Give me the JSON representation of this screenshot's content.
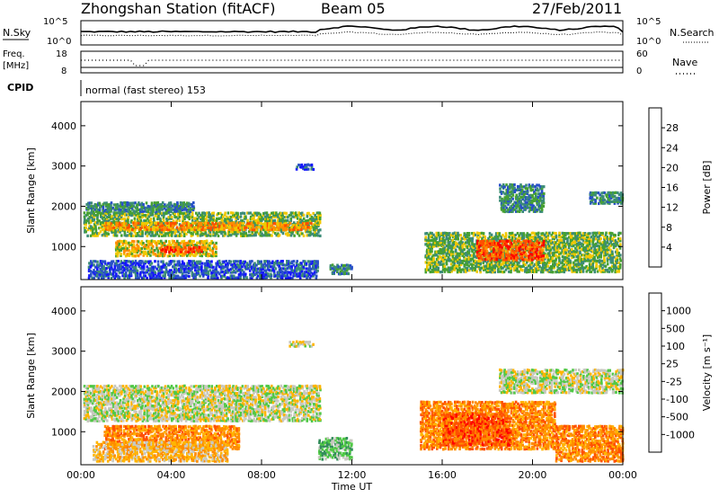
{
  "header": {
    "station": "Zhongshan Station (fitACF)",
    "beam": "Beam 05",
    "date": "27/Feb/2011"
  },
  "strip_panels": {
    "nsky_label": "N.Sky",
    "nsearch_label": "N.Search",
    "freq_label_1": "Freq.",
    "freq_label_2": "[MHz]",
    "nave_label": "Nave",
    "cpid_label": "CPID",
    "cpid_text": "normal (fast stereo) 153",
    "noise_ticks_left": [
      "10^5",
      "10^0"
    ],
    "noise_ticks_right": [
      "10^5",
      "10^0"
    ],
    "freq_ticks": [
      "18",
      "8"
    ],
    "nave_ticks": [
      "60",
      "0"
    ]
  },
  "chart_data": [
    {
      "type": "heatmap",
      "name": "power",
      "ylabel": "Slant Range [km]",
      "xlabel": "",
      "xlim": [
        0,
        24
      ],
      "ylim": [
        180,
        4600
      ],
      "yticks": [
        "1000",
        "2000",
        "3000",
        "4000"
      ],
      "xticks": [
        "00:00",
        "04:00",
        "08:00",
        "12:00",
        "16:00",
        "20:00",
        "00:00"
      ],
      "colorbar": {
        "label": "Power [dB]",
        "ticks": [
          "4",
          "8",
          "12",
          "16",
          "20",
          "24",
          "28"
        ],
        "colors": [
          "#1414ff",
          "#2850c8",
          "#3c8c78",
          "#46a032",
          "#f0c800",
          "#ff8c00",
          "#ff5000",
          "#ff0000"
        ]
      },
      "echo_regions": [
        {
          "t0": 0.1,
          "t1": 10.6,
          "r0": 1300,
          "r1": 1900,
          "level": 3
        },
        {
          "t0": 1.0,
          "t1": 10.2,
          "r0": 1450,
          "r1": 1650,
          "level": 5
        },
        {
          "t0": 1.5,
          "t1": 6.0,
          "r0": 800,
          "r1": 1200,
          "level": 4
        },
        {
          "t0": 3.5,
          "t1": 5.5,
          "r0": 900,
          "r1": 1050,
          "level": 6
        },
        {
          "t0": 0.2,
          "t1": 5.0,
          "r0": 1900,
          "r1": 2150,
          "level": 2
        },
        {
          "t0": 0.3,
          "t1": 10.5,
          "r0": 250,
          "r1": 700,
          "level": 1
        },
        {
          "t0": 9.5,
          "t1": 10.3,
          "r0": 2950,
          "r1": 3100,
          "level": 1
        },
        {
          "t0": 15.2,
          "t1": 23.9,
          "r0": 400,
          "r1": 1400,
          "level": 3
        },
        {
          "t0": 17.5,
          "t1": 20.5,
          "r0": 700,
          "r1": 1200,
          "level": 6
        },
        {
          "t0": 18.5,
          "t1": 20.5,
          "r0": 1900,
          "r1": 2600,
          "level": 2
        },
        {
          "t0": 22.5,
          "t1": 24.0,
          "r0": 2100,
          "r1": 2400,
          "level": 2
        },
        {
          "t0": 11.0,
          "t1": 12.0,
          "r0": 350,
          "r1": 600,
          "level": 2
        }
      ]
    },
    {
      "type": "heatmap",
      "name": "velocity",
      "ylabel": "Slant Range [km]",
      "xlabel": "Time UT",
      "xlim": [
        0,
        24
      ],
      "ylim": [
        180,
        4600
      ],
      "yticks": [
        "1000",
        "2000",
        "3000",
        "4000"
      ],
      "xticks": [
        "00:00",
        "04:00",
        "08:00",
        "12:00",
        "16:00",
        "20:00",
        "00:00"
      ],
      "colorbar": {
        "label": "Velocity [m s⁻¹]",
        "ticks": [
          "1000",
          "500",
          "100",
          "25",
          "-25",
          "-100",
          "-500",
          "-1000"
        ],
        "colors": [
          "#1432c8",
          "#2878c8",
          "#328c5a",
          "#50c846",
          "#c8c8c0",
          "#ffb400",
          "#ff8c00",
          "#ff5000",
          "#ff0000"
        ]
      },
      "echo_regions": [
        {
          "t0": 0.1,
          "t1": 10.6,
          "r0": 1300,
          "r1": 2200,
          "level": 4
        },
        {
          "t0": 1.0,
          "t1": 7.0,
          "r0": 600,
          "r1": 1200,
          "level": 6
        },
        {
          "t0": 0.5,
          "t1": 6.5,
          "r0": 300,
          "r1": 800,
          "level": 5
        },
        {
          "t0": 10.5,
          "t1": 12.0,
          "r0": 350,
          "r1": 900,
          "level": 3
        },
        {
          "t0": 15.0,
          "t1": 21.0,
          "r0": 600,
          "r1": 1800,
          "level": 6
        },
        {
          "t0": 16.0,
          "t1": 19.0,
          "r0": 700,
          "r1": 1500,
          "level": 7
        },
        {
          "t0": 21.0,
          "t1": 24.0,
          "r0": 300,
          "r1": 1200,
          "level": 6
        },
        {
          "t0": 18.5,
          "t1": 24.0,
          "r0": 2000,
          "r1": 2600,
          "level": 4
        },
        {
          "t0": 9.2,
          "t1": 10.3,
          "r0": 3150,
          "r1": 3300,
          "level": 4
        }
      ]
    }
  ]
}
